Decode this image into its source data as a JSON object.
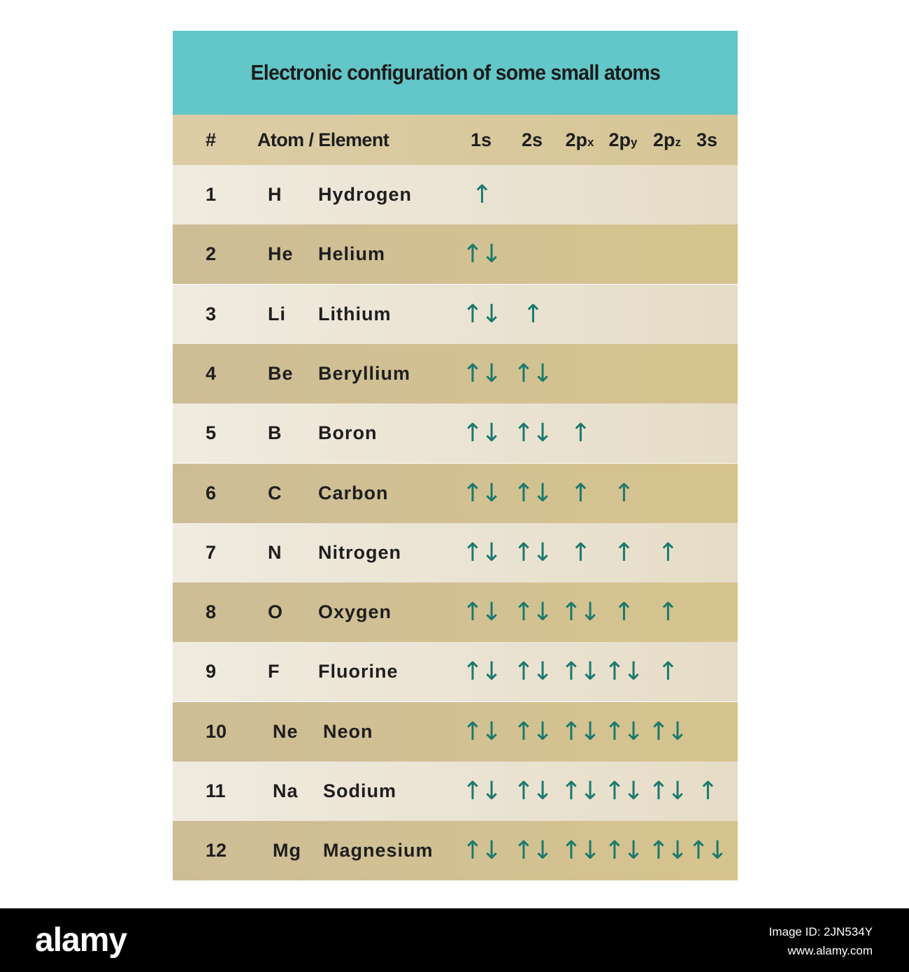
{
  "title": "Electronic configuration of some small atoms",
  "header": {
    "num": "#",
    "atom": "Atom / Element",
    "orbitals": [
      {
        "main": "1s",
        "sub": ""
      },
      {
        "main": "2s",
        "sub": ""
      },
      {
        "main": "2p",
        "sub": "x"
      },
      {
        "main": "2p",
        "sub": "y"
      },
      {
        "main": "2p",
        "sub": "z"
      },
      {
        "main": "3s",
        "sub": ""
      }
    ]
  },
  "elements": [
    {
      "num": "1",
      "symbol": "H",
      "name": "Hydrogen",
      "orbitals": [
        "↑",
        "",
        "",
        "",
        "",
        ""
      ]
    },
    {
      "num": "2",
      "symbol": "He",
      "name": "Helium",
      "orbitals": [
        "↑↓",
        "",
        "",
        "",
        "",
        ""
      ]
    },
    {
      "num": "3",
      "symbol": "Li",
      "name": "Lithium",
      "orbitals": [
        "↑↓",
        "↑",
        "",
        "",
        "",
        ""
      ]
    },
    {
      "num": "4",
      "symbol": "Be",
      "name": "Beryllium",
      "orbitals": [
        "↑↓",
        "↑↓",
        "",
        "",
        "",
        ""
      ]
    },
    {
      "num": "5",
      "symbol": "B",
      "name": "Boron",
      "orbitals": [
        "↑↓",
        "↑↓",
        "↑",
        "",
        "",
        ""
      ]
    },
    {
      "num": "6",
      "symbol": "C",
      "name": "Carbon",
      "orbitals": [
        "↑↓",
        "↑↓",
        "↑",
        "↑",
        "",
        ""
      ]
    },
    {
      "num": "7",
      "symbol": "N",
      "name": "Nitrogen",
      "orbitals": [
        "↑↓",
        "↑↓",
        "↑",
        "↑",
        "↑",
        ""
      ]
    },
    {
      "num": "8",
      "symbol": "O",
      "name": "Oxygen",
      "orbitals": [
        "↑↓",
        "↑↓",
        "↑↓",
        "↑",
        "↑",
        ""
      ]
    },
    {
      "num": "9",
      "symbol": "F",
      "name": "Fluorine",
      "orbitals": [
        "↑↓",
        "↑↓",
        "↑↓",
        "↑↓",
        "↑",
        ""
      ]
    },
    {
      "num": "10",
      "symbol": "Ne",
      "name": "Neon",
      "orbitals": [
        "↑↓",
        "↑↓",
        "↑↓",
        "↑↓",
        "↑↓",
        ""
      ]
    },
    {
      "num": "11",
      "symbol": "Na",
      "name": "Sodium",
      "orbitals": [
        "↑↓",
        "↑↓",
        "↑↓",
        "↑↓",
        "↑↓",
        "↑"
      ]
    },
    {
      "num": "12",
      "symbol": "Mg",
      "name": "Magnesium",
      "orbitals": [
        "↑↓",
        "↑↓",
        "↑↓",
        "↑↓",
        "↑↓",
        "↑↓"
      ]
    }
  ],
  "footer": {
    "logo": "alamy",
    "image_id": "Image ID: 2JN534Y",
    "site": "www.alamy.com"
  },
  "colors": {
    "title_bar": "#63c6c8",
    "arrow": "#1a7a6e",
    "row_light": "#f0ebe0",
    "row_dark": "#cdbd96"
  }
}
